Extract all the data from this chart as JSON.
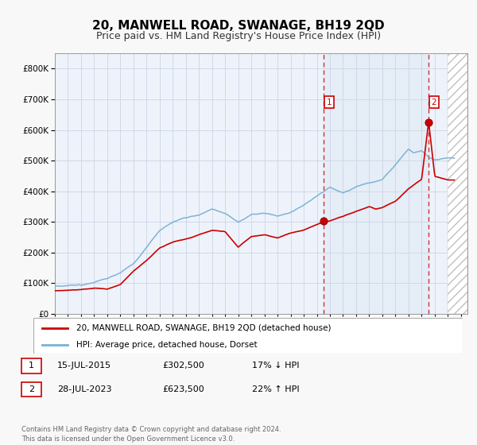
{
  "title": "20, MANWELL ROAD, SWANAGE, BH19 2QD",
  "subtitle": "Price paid vs. HM Land Registry's House Price Index (HPI)",
  "title_fontsize": 11,
  "subtitle_fontsize": 9,
  "ylim": [
    0,
    850000
  ],
  "yticks": [
    0,
    100000,
    200000,
    300000,
    400000,
    500000,
    600000,
    700000,
    800000
  ],
  "ytick_labels": [
    "£0",
    "£100K",
    "£200K",
    "£300K",
    "£400K",
    "£500K",
    "£600K",
    "£700K",
    "£800K"
  ],
  "xlim_start": 1995.0,
  "xlim_end": 2026.5,
  "hpi_color": "#7ab0d4",
  "price_color": "#cc0000",
  "plot_bg": "#eef3fb",
  "grid_color": "#d0d8e8",
  "fig_bg": "#f0f0f0",
  "sale1_year": 2015.54,
  "sale1_price": 302500,
  "sale1_label": "1",
  "sale1_date": "15-JUL-2015",
  "sale1_hpi_pct": "17% ↓ HPI",
  "sale2_year": 2023.54,
  "sale2_price": 623500,
  "sale2_label": "2",
  "sale2_date": "28-JUL-2023",
  "sale2_hpi_pct": "22% ↑ HPI",
  "legend_line1": "20, MANWELL ROAD, SWANAGE, BH19 2QD (detached house)",
  "legend_line2": "HPI: Average price, detached house, Dorset",
  "footer": "Contains HM Land Registry data © Crown copyright and database right 2024.\nThis data is licensed under the Open Government Licence v3.0.",
  "future_start": 2025.0
}
